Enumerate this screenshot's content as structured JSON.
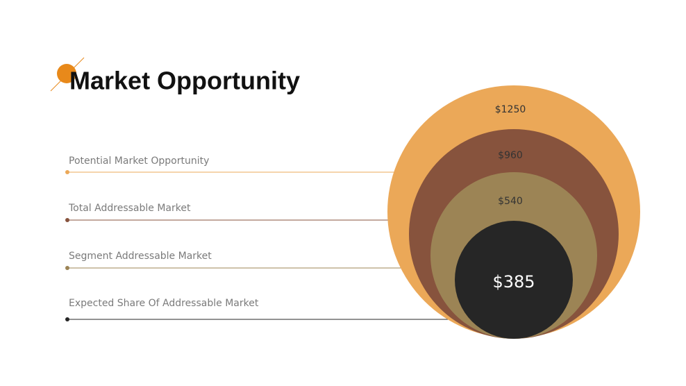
{
  "title": "Market Opportunity",
  "layers": [
    {
      "label": "Potential Market Opportunity",
      "value": "$1250"
    },
    {
      "label": "Total Addressable Market",
      "value": "$960"
    },
    {
      "label": "Segment Addressable Market",
      "value": "$540"
    },
    {
      "label": "Expected Share Of Addressable Market",
      "value": "$385"
    }
  ]
}
